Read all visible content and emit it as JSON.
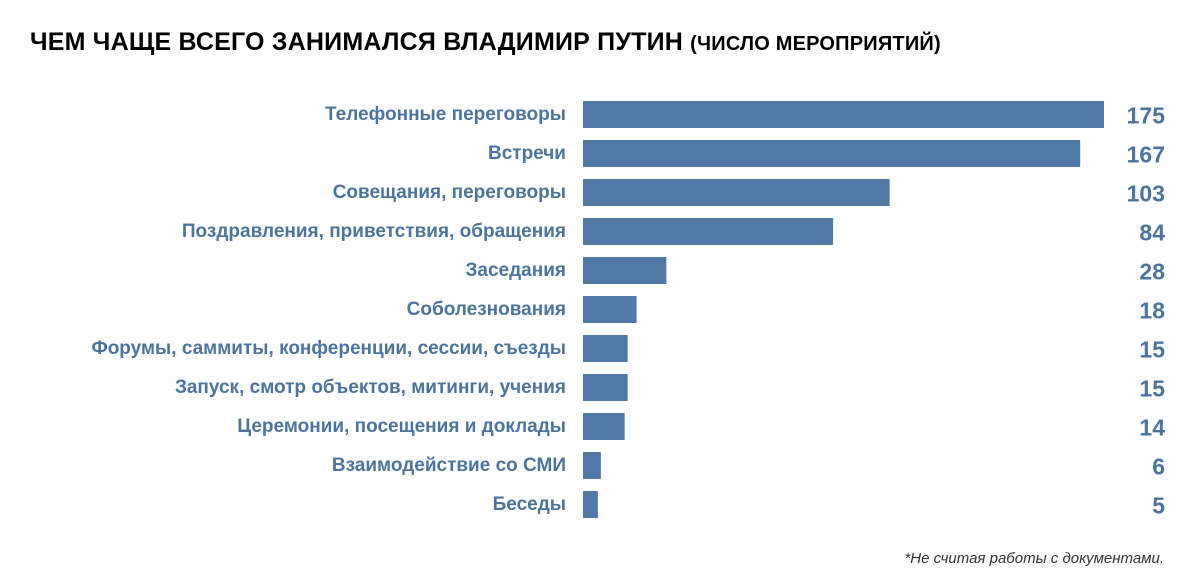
{
  "title": {
    "main": "ЧЕМ ЧАЩЕ ВСЕГО ЗАНИМАЛСЯ ВЛАДИМИР ПУТИН",
    "sub": "(ЧИСЛО МЕРОПРИЯТИЙ)"
  },
  "footnote": "*Не считая работы с документами.",
  "colors": {
    "bar": "#5079a6",
    "label": "#4d74a1",
    "title": "#000000"
  },
  "chart_data": {
    "type": "bar",
    "orientation": "horizontal",
    "title": "ЧЕМ ЧАЩЕ ВСЕГО ЗАНИМАЛСЯ ВЛАДИМИР ПУТИН (ЧИСЛО МЕРОПРИЯТИЙ)",
    "categories": [
      "Телефонные переговоры",
      "Встречи",
      "Совещания, переговоры",
      "Поздравления, приветствия, обращения",
      "Заседания",
      "Соболезнования",
      "Форумы, саммиты, конференции, сессии, съезды",
      "Запуск, смотр объектов, митинги, учения",
      "Церемонии, посещения и доклады",
      "Взаимодействие со СМИ",
      "Беседы"
    ],
    "values": [
      175,
      167,
      103,
      84,
      28,
      18,
      15,
      15,
      14,
      6,
      5
    ],
    "grid": false,
    "legend": "none",
    "data_labels": "right"
  }
}
